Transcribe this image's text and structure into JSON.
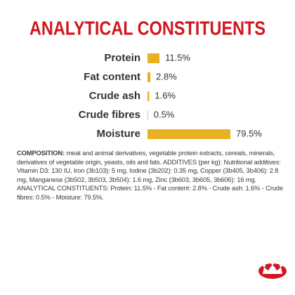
{
  "chart_data": {
    "type": "bar",
    "orientation": "horizontal",
    "title": "ANALYTICAL CONSTITUENTS",
    "categories": [
      "Protein",
      "Fat content",
      "Crude ash",
      "Crude fibres",
      "Moisture"
    ],
    "values": [
      11.5,
      2.8,
      1.6,
      0.5,
      79.5
    ],
    "value_labels": [
      "11.5%",
      "2.8%",
      "1.6%",
      "0.5%",
      "79.5%"
    ],
    "color": "#e8b123"
  },
  "composition": {
    "label": "COMPOSITION:",
    "text": "meat and animal derivatives, vegetable protein extracts, cereals, minerals, derivatives of vegetable origin, yeasts, oils and fats. ADDITIVES (per kg): Nutritional additives: Vitamin D3: 130 IU, Iron (3b103): 5 mg, Iodine (3b202): 0.35 mg, Copper (3b405, 3b406): 2.8 mg, Manganese (3b502, 3b503, 3b504): 1.6 mg, Zinc (3b603, 3b605, 3b606): 16 mg. ANALYTICAL CONSTITUENTS: Protein: 11.5% - Fat content: 2.8% - Crude ash: 1.6% - Crude fibres: 0.5% - Moisture: 79.5%."
  }
}
